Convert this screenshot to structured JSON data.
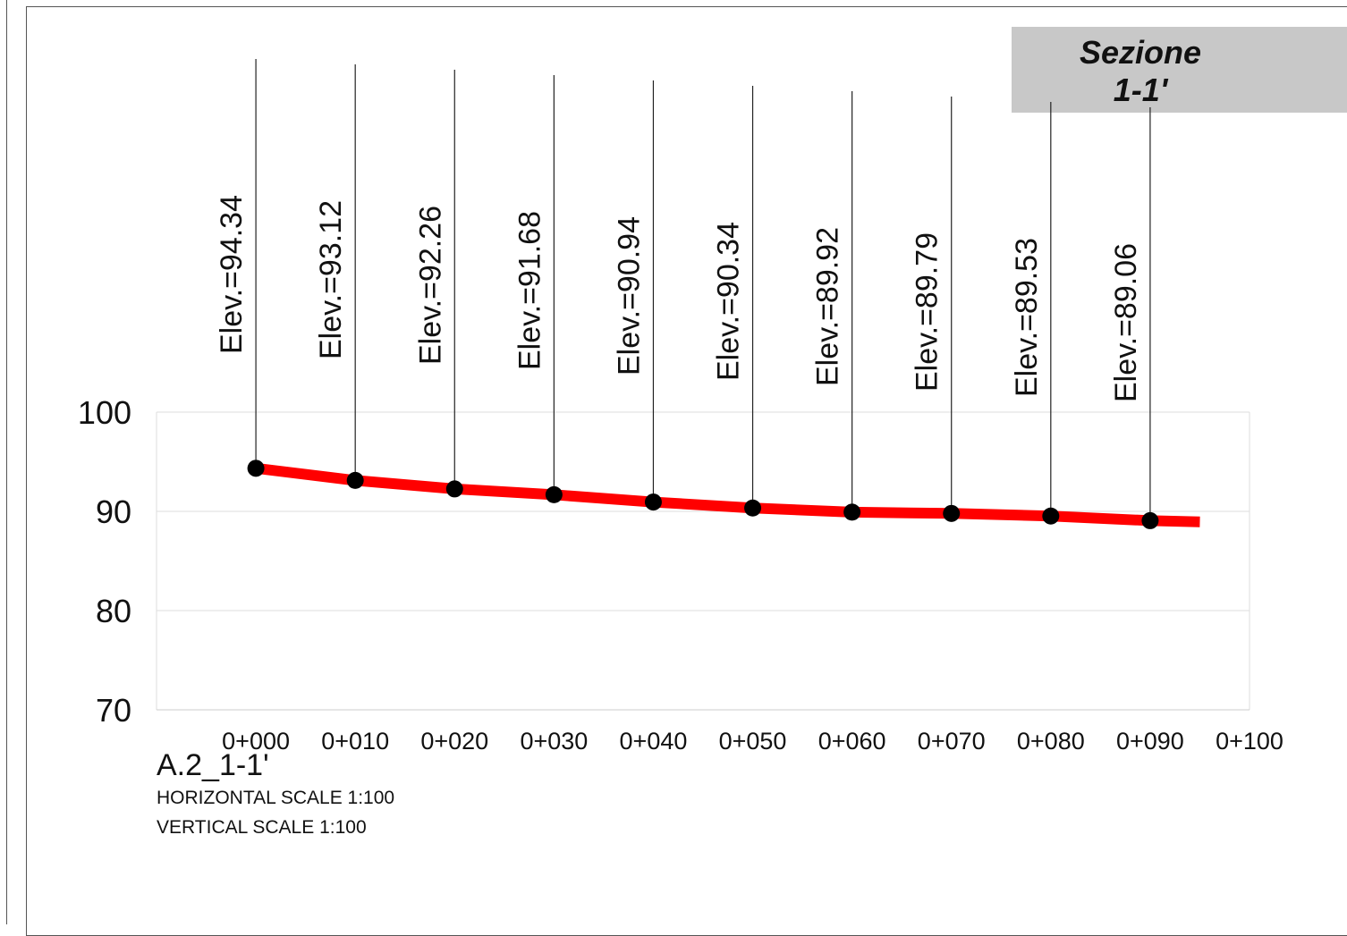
{
  "section_label": {
    "title": "Sezione",
    "id": "1-1'"
  },
  "chart_data": {
    "type": "line",
    "title": "",
    "xlabel": "",
    "ylabel": "",
    "x": [
      0,
      10,
      20,
      30,
      40,
      50,
      60,
      70,
      80,
      90
    ],
    "xlim": [
      -10,
      100
    ],
    "ylim": [
      70,
      100
    ],
    "y_ticks": [
      70,
      80,
      90,
      100
    ],
    "x_ticks": [
      0,
      10,
      20,
      30,
      40,
      50,
      60,
      70,
      80,
      90,
      100
    ],
    "x_tick_labels": [
      "0+000",
      "0+010",
      "0+020",
      "0+030",
      "0+040",
      "0+050",
      "0+060",
      "0+070",
      "0+080",
      "0+090",
      "0+100"
    ],
    "series": [
      {
        "values": [
          94.34,
          93.12,
          92.26,
          91.68,
          90.94,
          90.34,
          89.92,
          89.79,
          89.53,
          89.06
        ],
        "color": "#ff0000",
        "end_extension": {
          "x": 95,
          "y": 88.95
        }
      }
    ],
    "point_labels": [
      "Elev.=94.34",
      "Elev.=93.12",
      "Elev.=92.26",
      "Elev.=91.68",
      "Elev.=90.94",
      "Elev.=90.34",
      "Elev.=89.92",
      "Elev.=89.79",
      "Elev.=89.53",
      "Elev.=89.06"
    ],
    "grid": true,
    "marker_color": "#000000"
  },
  "caption": {
    "view_name": "A.2_1-1'",
    "horizontal_scale": "HORIZONTAL SCALE 1:100",
    "vertical_scale": "VERTICAL SCALE 1:100"
  }
}
